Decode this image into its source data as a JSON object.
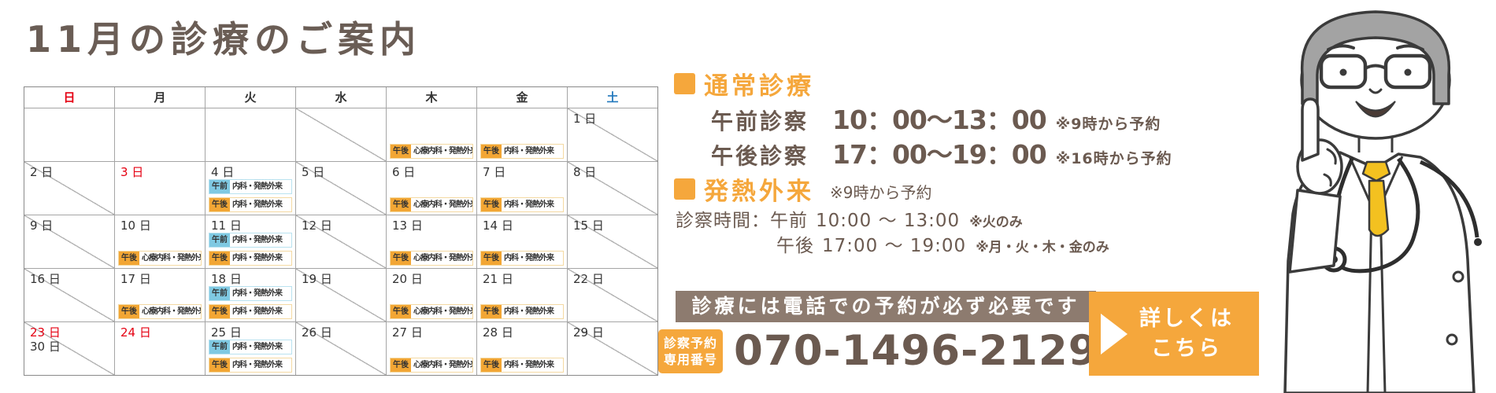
{
  "title": "11月の診療のご案内",
  "calendar": {
    "day_headers": [
      {
        "label": "日",
        "type": "sun"
      },
      {
        "label": "月",
        "type": "weekday"
      },
      {
        "label": "火",
        "type": "weekday"
      },
      {
        "label": "水",
        "type": "weekday"
      },
      {
        "label": "木",
        "type": "weekday"
      },
      {
        "label": "金",
        "type": "weekday"
      },
      {
        "label": "土",
        "type": "sat"
      }
    ],
    "weeks": [
      [
        {
          "day": "",
          "closed": false,
          "sessions": []
        },
        {
          "day": "",
          "closed": false,
          "sessions": []
        },
        {
          "day": "",
          "closed": false,
          "sessions": []
        },
        {
          "day": "",
          "closed": true,
          "sessions": []
        },
        {
          "day": "",
          "closed": false,
          "sessions": [
            {
              "period": "午後",
              "dept": "心療内科・発熱外来",
              "shift": "pm"
            }
          ]
        },
        {
          "day": "",
          "closed": false,
          "sessions": [
            {
              "period": "午後",
              "dept": "内科・発熱外来",
              "shift": "pm"
            }
          ]
        },
        {
          "day": "1 日",
          "closed": true,
          "sessions": []
        }
      ],
      [
        {
          "day": "2 日",
          "closed": true,
          "sessions": []
        },
        {
          "day": "3 日",
          "holiday": true,
          "closed": false,
          "sessions": []
        },
        {
          "day": "4 日",
          "closed": false,
          "sessions": [
            {
              "period": "午前",
              "dept": "内科・発熱外来",
              "shift": "am"
            },
            {
              "period": "午後",
              "dept": "内科・発熱外来",
              "shift": "pm"
            }
          ]
        },
        {
          "day": "5 日",
          "closed": true,
          "sessions": []
        },
        {
          "day": "6 日",
          "closed": false,
          "sessions": [
            {
              "period": "午後",
              "dept": "心療内科・発熱外来",
              "shift": "pm"
            }
          ]
        },
        {
          "day": "7 日",
          "closed": false,
          "sessions": [
            {
              "period": "午後",
              "dept": "内科・発熱外来",
              "shift": "pm"
            }
          ]
        },
        {
          "day": "8 日",
          "closed": true,
          "sessions": []
        }
      ],
      [
        {
          "day": "9 日",
          "closed": true,
          "sessions": []
        },
        {
          "day": "10 日",
          "closed": false,
          "sessions": [
            {
              "period": "午後",
              "dept": "心療内科・発熱外来",
              "shift": "pm"
            }
          ]
        },
        {
          "day": "11 日",
          "closed": false,
          "sessions": [
            {
              "period": "午前",
              "dept": "内科・発熱外来",
              "shift": "am"
            },
            {
              "period": "午後",
              "dept": "内科・発熱外来",
              "shift": "pm"
            }
          ]
        },
        {
          "day": "12 日",
          "closed": true,
          "sessions": []
        },
        {
          "day": "13 日",
          "closed": false,
          "sessions": [
            {
              "period": "午後",
              "dept": "心療内科・発熱外来",
              "shift": "pm"
            }
          ]
        },
        {
          "day": "14 日",
          "closed": false,
          "sessions": [
            {
              "period": "午後",
              "dept": "内科・発熱外来",
              "shift": "pm"
            }
          ]
        },
        {
          "day": "15 日",
          "closed": true,
          "sessions": []
        }
      ],
      [
        {
          "day": "16 日",
          "closed": true,
          "sessions": []
        },
        {
          "day": "17 日",
          "closed": false,
          "sessions": [
            {
              "period": "午後",
              "dept": "心療内科・発熱外来",
              "shift": "pm"
            }
          ]
        },
        {
          "day": "18 日",
          "closed": false,
          "sessions": [
            {
              "period": "午前",
              "dept": "内科・発熱外来",
              "shift": "am"
            },
            {
              "period": "午後",
              "dept": "内科・発熱外来",
              "shift": "pm"
            }
          ]
        },
        {
          "day": "19 日",
          "closed": true,
          "sessions": []
        },
        {
          "day": "20 日",
          "closed": false,
          "sessions": [
            {
              "period": "午後",
              "dept": "心療内科・発熱外来",
              "shift": "pm"
            }
          ]
        },
        {
          "day": "21 日",
          "closed": false,
          "sessions": [
            {
              "period": "午後",
              "dept": "内科・発熱外来",
              "shift": "pm"
            }
          ]
        },
        {
          "day": "22 日",
          "closed": true,
          "sessions": []
        }
      ],
      [
        {
          "day": "23 日",
          "holiday": true,
          "day2": "30 日",
          "closed": true,
          "sessions": []
        },
        {
          "day": "24 日",
          "holiday": true,
          "closed": false,
          "sessions": []
        },
        {
          "day": "25 日",
          "closed": false,
          "sessions": [
            {
              "period": "午前",
              "dept": "内科・発熱外来",
              "shift": "am"
            },
            {
              "period": "午後",
              "dept": "内科・発熱外来",
              "shift": "pm"
            }
          ]
        },
        {
          "day": "26 日",
          "closed": true,
          "sessions": []
        },
        {
          "day": "27 日",
          "closed": false,
          "sessions": [
            {
              "period": "午後",
              "dept": "心療内科・発熱外来",
              "shift": "pm"
            }
          ]
        },
        {
          "day": "28 日",
          "closed": false,
          "sessions": [
            {
              "period": "午後",
              "dept": "内科・発熱外来",
              "shift": "pm"
            }
          ]
        },
        {
          "day": "29 日",
          "closed": true,
          "sessions": []
        }
      ]
    ]
  },
  "info": {
    "normal": {
      "heading": "通常診療",
      "rows": [
        {
          "label": "午前診察",
          "time": "10：00～13：00",
          "note": "※9時から予約"
        },
        {
          "label": "午後診察",
          "time": "17：00～19：00",
          "note": "※16時から予約"
        }
      ]
    },
    "fever": {
      "heading": "発熱外来",
      "heading_note": "※9時から予約",
      "lines": [
        {
          "label": "診察時間：午前",
          "time": "10:00 ～ 13:00",
          "note": "※火のみ"
        },
        {
          "label": "午後",
          "time": "17:00 ～ 19:00",
          "note": "※月・火・木・金のみ"
        }
      ]
    },
    "banner": "診療には電話での予約が必ず必要です",
    "phone": {
      "badge_line1": "診察予約",
      "badge_line2": "専用番号",
      "number": "070-1496-2129"
    },
    "cta": {
      "line1": "詳しくは",
      "line2": "こちら"
    }
  },
  "colors": {
    "accent_orange": "#F5A73C",
    "chip_am_blue": "#7FC9E2",
    "chip_pm_orange": "#F2A634",
    "sunday_red": "#E50012",
    "saturday_blue": "#2479BD",
    "text_brown": "#6B5A50",
    "banner_brown": "#8D7B6F"
  }
}
